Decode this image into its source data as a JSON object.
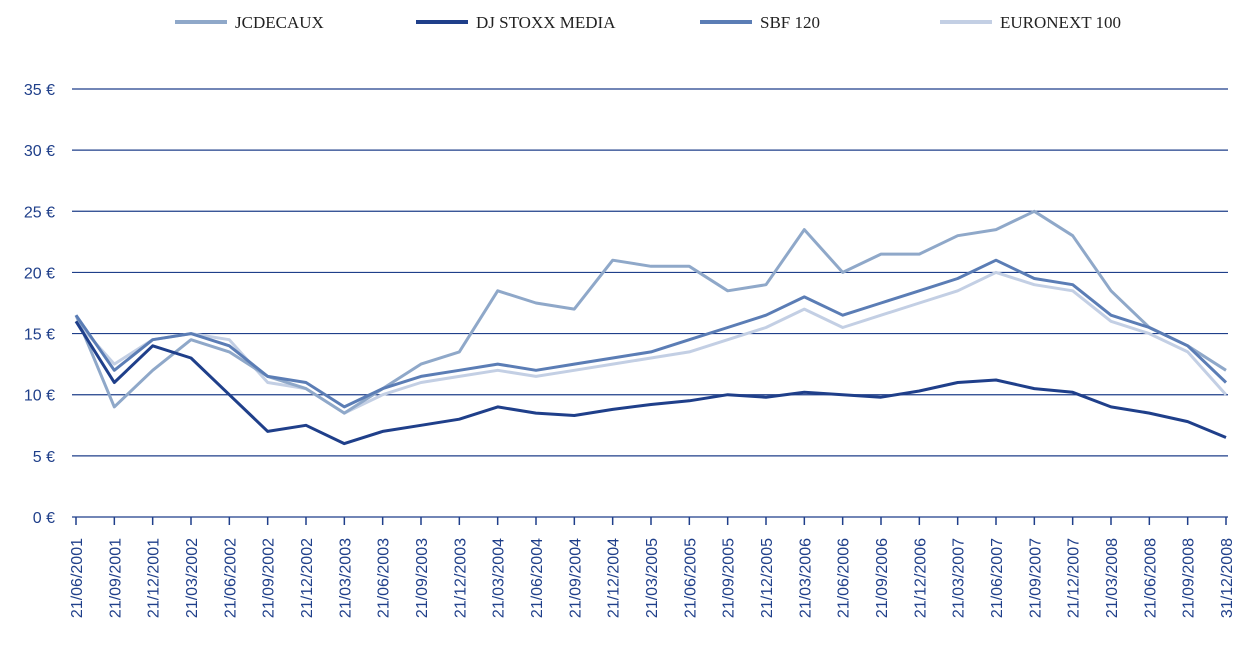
{
  "chart_data": {
    "type": "line",
    "categories": [
      "21/06/2001",
      "21/09/2001",
      "21/12/2001",
      "21/03/2002",
      "21/06/2002",
      "21/09/2002",
      "21/12/2002",
      "21/03/2003",
      "21/06/2003",
      "21/09/2003",
      "21/12/2003",
      "21/03/2004",
      "21/06/2004",
      "21/09/2004",
      "21/12/2004",
      "21/03/2005",
      "21/06/2005",
      "21/09/2005",
      "21/12/2005",
      "21/03/2006",
      "21/06/2006",
      "21/09/2006",
      "21/12/2006",
      "21/03/2007",
      "21/06/2007",
      "21/09/2007",
      "21/12/2007",
      "21/03/2008",
      "21/06/2008",
      "21/09/2008",
      "31/12/2008"
    ],
    "series": [
      {
        "name": "JCDECAUX",
        "color": "#8fa8c9",
        "values": [
          16.5,
          9,
          12,
          14.5,
          13.5,
          11.5,
          10.5,
          8.5,
          10.5,
          12.5,
          13.5,
          18.5,
          17.5,
          17,
          21,
          20.5,
          20.5,
          18.5,
          19,
          23.5,
          20,
          21.5,
          21.5,
          23,
          23.5,
          25,
          23,
          18.5,
          15.5,
          14,
          12
        ]
      },
      {
        "name": "DJ STOXX MEDIA",
        "color": "#1f3f8a",
        "values": [
          16,
          11,
          14,
          13,
          10,
          7,
          7.5,
          6,
          7,
          7.5,
          8,
          9,
          8.5,
          8.3,
          8.8,
          9.2,
          9.5,
          10,
          9.8,
          10.2,
          10,
          9.8,
          10.3,
          11,
          11.2,
          10.5,
          10.2,
          9,
          8.5,
          7.8,
          6.5
        ]
      },
      {
        "name": "SBF 120",
        "color": "#5b7db5",
        "values": [
          16.5,
          12,
          14.5,
          15,
          14,
          11.5,
          11,
          9,
          10.5,
          11.5,
          12,
          12.5,
          12,
          12.5,
          13,
          13.5,
          14.5,
          15.5,
          16.5,
          18,
          16.5,
          17.5,
          18.5,
          19.5,
          21,
          19.5,
          19,
          16.5,
          15.5,
          14,
          11
        ]
      },
      {
        "name": "EURONEXT 100",
        "color": "#c3cfe4",
        "values": [
          16,
          12.5,
          14.5,
          15,
          14.5,
          11,
          10.5,
          8.5,
          10,
          11,
          11.5,
          12,
          11.5,
          12,
          12.5,
          13,
          13.5,
          14.5,
          15.5,
          17,
          15.5,
          16.5,
          17.5,
          18.5,
          20,
          19,
          18.5,
          16,
          15,
          13.5,
          10
        ]
      }
    ],
    "ylim": [
      0,
      35
    ],
    "yticks": [
      {
        "value": 0,
        "label": "0 €"
      },
      {
        "value": 5,
        "label": "5 €"
      },
      {
        "value": 10,
        "label": "10 €"
      },
      {
        "value": 15,
        "label": "15 €"
      },
      {
        "value": 20,
        "label": "20 €"
      },
      {
        "value": 25,
        "label": "25 €"
      },
      {
        "value": 30,
        "label": "30 €"
      },
      {
        "value": 35,
        "label": "35 €"
      }
    ],
    "grid": true,
    "legend": "top"
  }
}
